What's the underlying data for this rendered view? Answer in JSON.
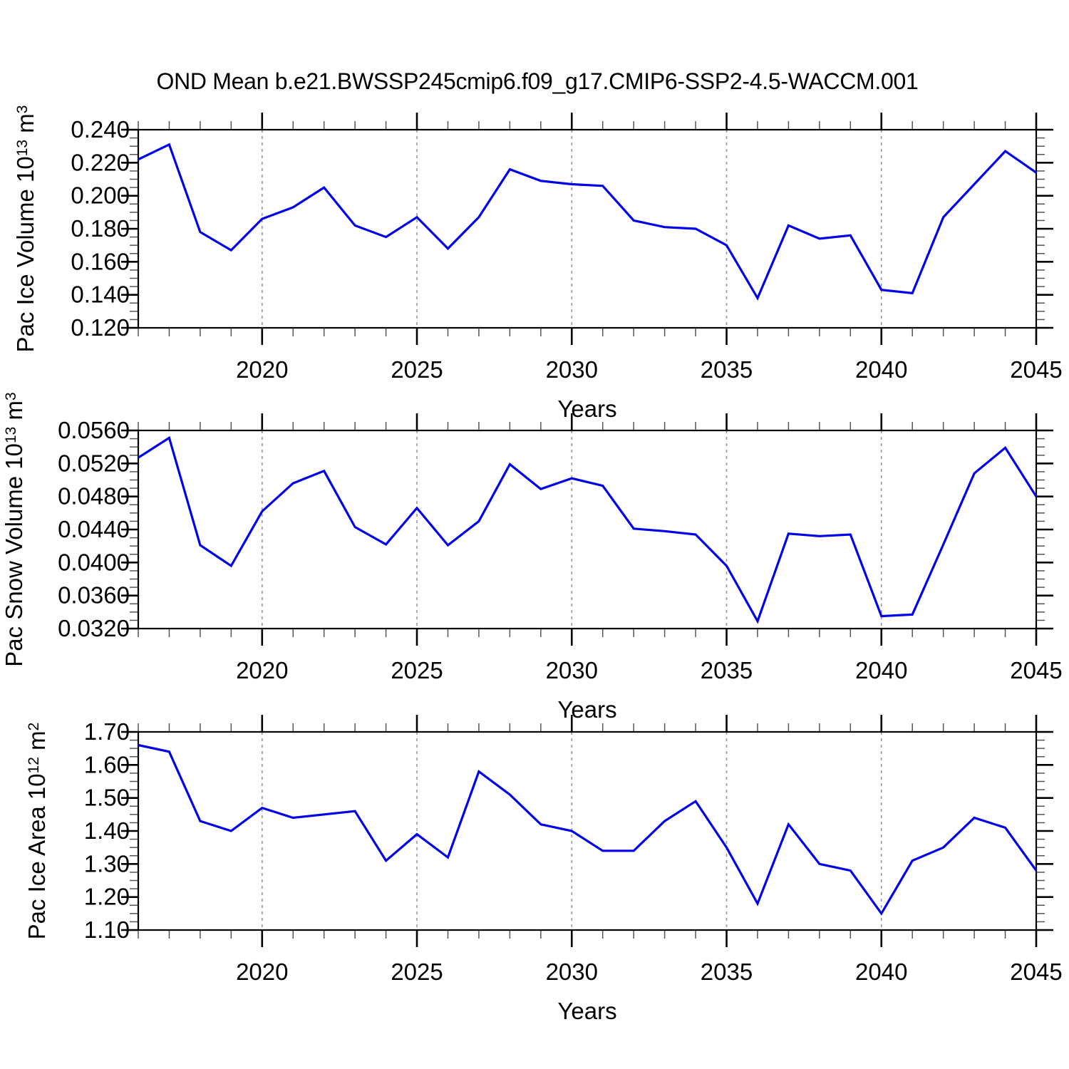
{
  "title": "OND Mean b.e21.BWSSP245cmip6.f09_g17.CMIP6-SSP2-4.5-WACCM.001",
  "line_color": "#0000ee",
  "grid_color": "#999999",
  "chart_data": [
    {
      "type": "line",
      "name": "pac-ice-volume",
      "ylabel": {
        "pre": "Pac Ice Volume 10",
        "exp": "13",
        "mid": " m",
        "exp2": "3"
      },
      "xlabel": "Years",
      "xlim": [
        2016,
        2045
      ],
      "x": [
        2016,
        2017,
        2018,
        2019,
        2020,
        2021,
        2022,
        2023,
        2024,
        2025,
        2026,
        2027,
        2028,
        2029,
        2030,
        2031,
        2032,
        2033,
        2034,
        2035,
        2036,
        2037,
        2038,
        2039,
        2040,
        2041,
        2042,
        2043,
        2044,
        2045
      ],
      "values": [
        0.222,
        0.231,
        0.178,
        0.167,
        0.186,
        0.193,
        0.205,
        0.182,
        0.175,
        0.187,
        0.168,
        0.187,
        0.216,
        0.209,
        0.207,
        0.206,
        0.185,
        0.181,
        0.18,
        0.17,
        0.138,
        0.182,
        0.174,
        0.176,
        0.143,
        0.141,
        0.187,
        0.207,
        0.227,
        0.214
      ],
      "ylim": [
        0.12,
        0.24
      ],
      "yticks": [
        0.12,
        0.14,
        0.16,
        0.18,
        0.2,
        0.22,
        0.24
      ],
      "ytick_labels": [
        "0.120",
        "0.140",
        "0.160",
        "0.180",
        "0.200",
        "0.220",
        "0.240"
      ],
      "yminor": 0.005,
      "xticks": [
        2020,
        2025,
        2030,
        2035,
        2040,
        2045
      ],
      "xtick_labels": [
        "2020",
        "2025",
        "2030",
        "2035",
        "2040",
        "2045"
      ],
      "grid_at": [
        2020,
        2025,
        2030,
        2035,
        2040
      ],
      "legend": "none",
      "grid": "vertical-dashed"
    },
    {
      "type": "line",
      "name": "pac-snow-volume",
      "ylabel": {
        "pre": "Pac Snow Volume 10",
        "exp": "13",
        "mid": " m",
        "exp2": "3"
      },
      "xlabel": "Years",
      "xlim": [
        2016,
        2045
      ],
      "x": [
        2016,
        2017,
        2018,
        2019,
        2020,
        2021,
        2022,
        2023,
        2024,
        2025,
        2026,
        2027,
        2028,
        2029,
        2030,
        2031,
        2032,
        2033,
        2034,
        2035,
        2036,
        2037,
        2038,
        2039,
        2040,
        2041,
        2042,
        2043,
        2044,
        2045
      ],
      "values": [
        0.0527,
        0.0551,
        0.0421,
        0.0396,
        0.0462,
        0.0496,
        0.0511,
        0.0443,
        0.0422,
        0.0466,
        0.0421,
        0.045,
        0.0519,
        0.0489,
        0.0502,
        0.0493,
        0.0441,
        0.0438,
        0.0434,
        0.0396,
        0.0329,
        0.0435,
        0.0432,
        0.0434,
        0.0335,
        0.0337,
        0.0422,
        0.0508,
        0.0539,
        0.048
      ],
      "ylim": [
        0.032,
        0.056
      ],
      "yticks": [
        0.032,
        0.036,
        0.04,
        0.044,
        0.048,
        0.052,
        0.056
      ],
      "ytick_labels": [
        "0.0320",
        "0.0360",
        "0.0400",
        "0.0440",
        "0.0480",
        "0.0520",
        "0.0560"
      ],
      "yminor": 0.001,
      "xticks": [
        2020,
        2025,
        2030,
        2035,
        2040,
        2045
      ],
      "xtick_labels": [
        "2020",
        "2025",
        "2030",
        "2035",
        "2040",
        "2045"
      ],
      "grid_at": [
        2020,
        2025,
        2030,
        2035,
        2040
      ],
      "legend": "none",
      "grid": "vertical-dashed"
    },
    {
      "type": "line",
      "name": "pac-ice-area",
      "ylabel": {
        "pre": "Pac Ice Area 10",
        "exp": "12",
        "mid": " m",
        "exp2": "2"
      },
      "xlabel": "Years",
      "xlim": [
        2016,
        2045
      ],
      "x": [
        2016,
        2017,
        2018,
        2019,
        2020,
        2021,
        2022,
        2023,
        2024,
        2025,
        2026,
        2027,
        2028,
        2029,
        2030,
        2031,
        2032,
        2033,
        2034,
        2035,
        2036,
        2037,
        2038,
        2039,
        2040,
        2041,
        2042,
        2043,
        2044,
        2045
      ],
      "values": [
        1.66,
        1.64,
        1.43,
        1.4,
        1.47,
        1.44,
        1.45,
        1.46,
        1.31,
        1.39,
        1.32,
        1.58,
        1.51,
        1.42,
        1.4,
        1.34,
        1.34,
        1.43,
        1.49,
        1.35,
        1.18,
        1.42,
        1.3,
        1.28,
        1.15,
        1.31,
        1.35,
        1.44,
        1.41,
        1.28
      ],
      "ylim": [
        1.1,
        1.7
      ],
      "yticks": [
        1.1,
        1.2,
        1.3,
        1.4,
        1.5,
        1.6,
        1.7
      ],
      "ytick_labels": [
        "1.10",
        "1.20",
        "1.30",
        "1.40",
        "1.50",
        "1.60",
        "1.70"
      ],
      "yminor": 0.025,
      "xticks": [
        2020,
        2025,
        2030,
        2035,
        2040,
        2045
      ],
      "xtick_labels": [
        "2020",
        "2025",
        "2030",
        "2035",
        "2040",
        "2045"
      ],
      "grid_at": [
        2020,
        2025,
        2030,
        2035,
        2040
      ],
      "legend": "none",
      "grid": "vertical-dashed"
    }
  ]
}
